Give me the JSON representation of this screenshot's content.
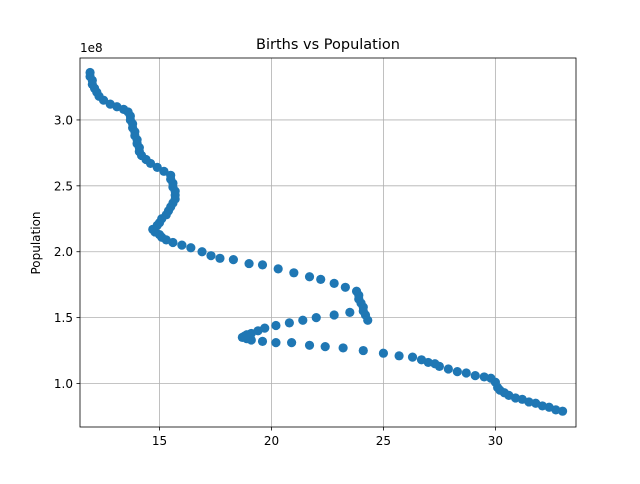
{
  "chart_data": {
    "type": "scatter",
    "title": "Births vs Population",
    "xlabel": "",
    "ylabel": "Population",
    "y_offset_label": "1e8",
    "xlim": [
      11.45,
      33.6
    ],
    "ylim": [
      67000000.0,
      347000000.0
    ],
    "x_ticks": [
      15,
      20,
      25,
      30
    ],
    "x_tick_labels": [
      "15",
      "20",
      "25",
      "30"
    ],
    "y_ticks": [
      100000000.0,
      150000000.0,
      200000000.0,
      250000000.0,
      300000000.0
    ],
    "y_tick_labels": [
      "1.0",
      "1.5",
      "2.0",
      "2.5",
      "3.0"
    ],
    "grid": true,
    "marker_color": "#1f77b4",
    "series": [
      {
        "points": [
          [
            33.0,
            79000000.0
          ],
          [
            32.7,
            80000000.0
          ],
          [
            32.4,
            82000000.0
          ],
          [
            32.1,
            83000000.0
          ],
          [
            31.8,
            85000000.0
          ],
          [
            31.5,
            86000000.0
          ],
          [
            31.2,
            88000000.0
          ],
          [
            30.9,
            89000000.0
          ],
          [
            30.6,
            91000000.0
          ],
          [
            30.4,
            93000000.0
          ],
          [
            30.2,
            95000000.0
          ],
          [
            30.1,
            97000000.0
          ],
          [
            30.0,
            101000000.0
          ],
          [
            29.8,
            104000000.0
          ],
          [
            29.5,
            105000000.0
          ],
          [
            29.1,
            106000000.0
          ],
          [
            28.7,
            108000000.0
          ],
          [
            28.3,
            109000000.0
          ],
          [
            27.9,
            111000000.0
          ],
          [
            27.5,
            113000000.0
          ],
          [
            27.3,
            115000000.0
          ],
          [
            27.0,
            116000000.0
          ],
          [
            26.7,
            118000000.0
          ],
          [
            26.3,
            120000000.0
          ],
          [
            25.7,
            121000000.0
          ],
          [
            25.0,
            123000000.0
          ],
          [
            24.1,
            125000000.0
          ],
          [
            23.2,
            127000000.0
          ],
          [
            22.4,
            128000000.0
          ],
          [
            21.7,
            129000000.0
          ],
          [
            20.9,
            131000000.0
          ],
          [
            20.2,
            131000000.0
          ],
          [
            19.6,
            132000000.0
          ],
          [
            19.1,
            133000000.0
          ],
          [
            18.9,
            134000000.0
          ],
          [
            18.7,
            135000000.0
          ],
          [
            18.8,
            136000000.0
          ],
          [
            18.9,
            137000000.0
          ],
          [
            19.1,
            138000000.0
          ],
          [
            19.4,
            140000000.0
          ],
          [
            19.7,
            142000000.0
          ],
          [
            20.2,
            144000000.0
          ],
          [
            20.8,
            146000000.0
          ],
          [
            21.4,
            148000000.0
          ],
          [
            22.0,
            150000000.0
          ],
          [
            22.8,
            152000000.0
          ],
          [
            23.5,
            154000000.0
          ],
          [
            24.3,
            148000000.0
          ],
          [
            24.2,
            152000000.0
          ],
          [
            24.1,
            155000000.0
          ],
          [
            24.1,
            158000000.0
          ],
          [
            24.0,
            161000000.0
          ],
          [
            23.9,
            164000000.0
          ],
          [
            23.9,
            167000000.0
          ],
          [
            23.8,
            170000000.0
          ],
          [
            23.3,
            173000000.0
          ],
          [
            22.8,
            176000000.0
          ],
          [
            22.2,
            179000000.0
          ],
          [
            21.7,
            181000000.0
          ],
          [
            21.0,
            184000000.0
          ],
          [
            20.3,
            187000000.0
          ],
          [
            19.6,
            190000000.0
          ],
          [
            19.0,
            191000000.0
          ],
          [
            18.3,
            194000000.0
          ],
          [
            17.7,
            195000000.0
          ],
          [
            17.3,
            197000000.0
          ],
          [
            16.9,
            200000000.0
          ],
          [
            16.4,
            203000000.0
          ],
          [
            16.0,
            205000000.0
          ],
          [
            15.6,
            207000000.0
          ],
          [
            15.3,
            209000000.0
          ],
          [
            15.1,
            211000000.0
          ],
          [
            15.0,
            213000000.0
          ],
          [
            14.8,
            215000000.0
          ],
          [
            14.7,
            217000000.0
          ],
          [
            14.9,
            220000000.0
          ],
          [
            15.0,
            222000000.0
          ],
          [
            15.1,
            225000000.0
          ],
          [
            15.3,
            228000000.0
          ],
          [
            15.4,
            231000000.0
          ],
          [
            15.5,
            234000000.0
          ],
          [
            15.6,
            237000000.0
          ],
          [
            15.7,
            240000000.0
          ],
          [
            15.7,
            243000000.0
          ],
          [
            15.7,
            246000000.0
          ],
          [
            15.6,
            249000000.0
          ],
          [
            15.6,
            252000000.0
          ],
          [
            15.5,
            255000000.0
          ],
          [
            15.5,
            258000000.0
          ],
          [
            15.2,
            261000000.0
          ],
          [
            14.9,
            264000000.0
          ],
          [
            14.6,
            267000000.0
          ],
          [
            14.4,
            270000000.0
          ],
          [
            14.2,
            273000000.0
          ],
          [
            14.1,
            276000000.0
          ],
          [
            14.1,
            279000000.0
          ],
          [
            14.0,
            282000000.0
          ],
          [
            14.0,
            285000000.0
          ],
          [
            13.9,
            288000000.0
          ],
          [
            13.9,
            291000000.0
          ],
          [
            13.8,
            294000000.0
          ],
          [
            13.8,
            297000000.0
          ],
          [
            13.7,
            300000000.0
          ],
          [
            13.7,
            303000000.0
          ],
          [
            13.6,
            306000000.0
          ],
          [
            13.4,
            308000000.0
          ],
          [
            13.1,
            310000000.0
          ],
          [
            12.8,
            312000000.0
          ],
          [
            12.5,
            315000000.0
          ],
          [
            12.3,
            318000000.0
          ],
          [
            12.2,
            321000000.0
          ],
          [
            12.1,
            324000000.0
          ],
          [
            12.0,
            327000000.0
          ],
          [
            12.0,
            330000000.0
          ],
          [
            11.9,
            333000000.0
          ],
          [
            11.9,
            336000000.0
          ]
        ]
      }
    ]
  }
}
